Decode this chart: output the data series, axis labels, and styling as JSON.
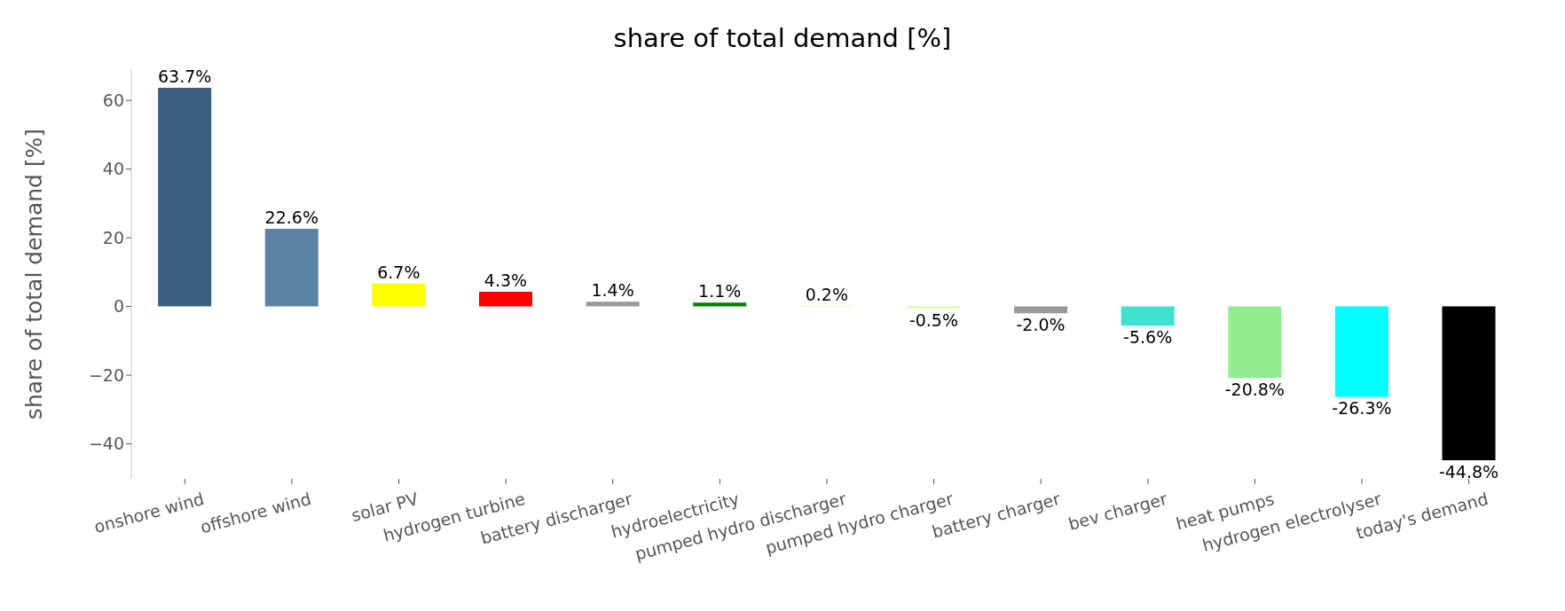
{
  "chart_data": {
    "type": "bar",
    "title": "share of total demand [%]",
    "ylabel": "share of total demand [%]",
    "categories": [
      "onshore wind",
      "offshore wind",
      "solar PV",
      "hydrogen turbine",
      "battery discharger",
      "hydroelectricity",
      "pumped hydro discharger",
      "pumped hydro charger",
      "battery charger",
      "bev charger",
      "heat pumps",
      "hydrogen electrolyser",
      "today's demand"
    ],
    "values": [
      63.7,
      22.6,
      6.7,
      4.3,
      1.4,
      1.1,
      0.2,
      -0.5,
      -2.0,
      -5.6,
      -20.8,
      -26.3,
      -44.8
    ],
    "value_labels": [
      "63.7%",
      "22.6%",
      "6.7%",
      "4.3%",
      "1.4%",
      "1.1%",
      "0.2%",
      "-0.5%",
      "-2.0%",
      "-5.6%",
      "-20.8%",
      "-26.3%",
      "-44.8%"
    ],
    "colors": [
      "#3b5f80",
      "#5b82a3",
      "#ffff00",
      "#ff0000",
      "#999999",
      "#008000",
      "#dbf59a",
      "#dbf59a",
      "#999999",
      "#40e0d0",
      "#90ee90",
      "#00ffff",
      "#000000"
    ],
    "ylim": [
      -50.2,
      69.1
    ],
    "yticks": [
      {
        "value": -40,
        "label": "−40"
      },
      {
        "value": -20,
        "label": "−20"
      },
      0,
      20,
      40,
      60
    ],
    "grid": false
  }
}
